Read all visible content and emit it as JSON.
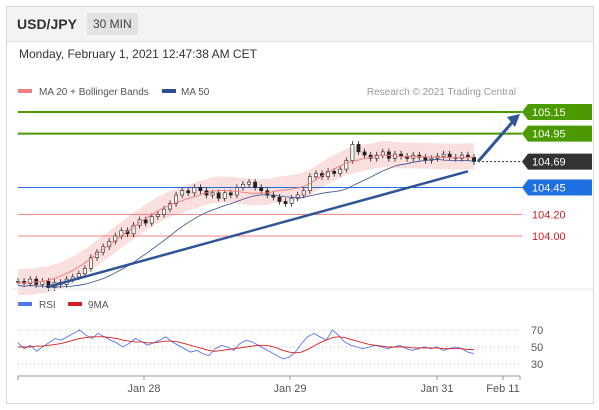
{
  "header": {
    "symbol": "USD/JPY",
    "timeframe": "30 MIN"
  },
  "timestamp": "Monday, February 1, 2021 12:47:38 AM CET",
  "legend": {
    "ma20": "MA 20 + Bollinger Bands",
    "ma50": "MA 50",
    "credit": "Research © 2021 Trading Central"
  },
  "rsi_legend": {
    "rsi": "RSI",
    "ma9": "9MA"
  },
  "colors": {
    "green": "#4a9a00",
    "blue": "#1e6fe0",
    "red": "#d22020",
    "dark": "#333333",
    "trend": "#2f5597",
    "band": "#f4b8b8"
  },
  "chart_data": [
    {
      "type": "candlestick",
      "title": "USD/JPY",
      "x_ticks": [
        "Jan 28",
        "Jan 29",
        "Jan 31",
        "Feb 11"
      ],
      "levels": [
        {
          "value": 105.15,
          "label": "105.15",
          "kind": "resistance"
        },
        {
          "value": 104.95,
          "label": "104.95",
          "kind": "resistance"
        },
        {
          "value": 104.69,
          "label": "104.69",
          "kind": "last"
        },
        {
          "value": 104.45,
          "label": "104.45",
          "kind": "support"
        },
        {
          "value": 104.2,
          "label": "104.20",
          "kind": "support"
        },
        {
          "value": 104.0,
          "label": "104.00",
          "kind": "support"
        }
      ],
      "ylim": [
        103.55,
        105.25
      ],
      "close_path": [
        103.58,
        103.56,
        103.6,
        103.55,
        103.58,
        103.52,
        103.57,
        103.55,
        103.6,
        103.62,
        103.65,
        103.7,
        103.8,
        103.85,
        103.9,
        103.95,
        104.0,
        104.05,
        104.02,
        104.1,
        104.15,
        104.12,
        104.18,
        104.2,
        104.25,
        104.3,
        104.38,
        104.42,
        104.4,
        104.45,
        104.42,
        104.38,
        104.4,
        104.35,
        104.4,
        104.38,
        104.45,
        104.48,
        104.5,
        104.45,
        104.42,
        104.38,
        104.36,
        104.32,
        104.3,
        104.35,
        104.38,
        104.42,
        104.55,
        104.58,
        104.55,
        104.6,
        104.58,
        104.62,
        104.7,
        104.85,
        104.78,
        104.75,
        104.72,
        104.75,
        104.78,
        104.72,
        104.76,
        104.74,
        104.72,
        104.75,
        104.73,
        104.7,
        104.72,
        104.74,
        104.76,
        104.73,
        104.72,
        104.75,
        104.73,
        104.69
      ],
      "trendline": {
        "from": {
          "index": 5,
          "value": 103.53
        },
        "to": {
          "index": 74,
          "value": 104.6
        }
      },
      "projection": {
        "from": 104.69,
        "to": 105.15
      }
    },
    {
      "type": "line",
      "title": "RSI",
      "y_ticks": [
        70,
        50,
        30
      ],
      "ylim": [
        20,
        80
      ],
      "series": [
        {
          "name": "RSI",
          "color": "#5577ee",
          "values": [
            55,
            48,
            52,
            45,
            50,
            55,
            60,
            58,
            62,
            66,
            70,
            64,
            60,
            66,
            62,
            58,
            55,
            50,
            54,
            60,
            57,
            52,
            55,
            58,
            62,
            56,
            52,
            48,
            44,
            46,
            42,
            40,
            48,
            52,
            50,
            46,
            54,
            58,
            56,
            52,
            48,
            44,
            40,
            36,
            38,
            44,
            54,
            62,
            66,
            62,
            58,
            70,
            64,
            56,
            52,
            50,
            48,
            50,
            52,
            50,
            48,
            50,
            52,
            48,
            46,
            48,
            50,
            48,
            50,
            46,
            48,
            50,
            48,
            44,
            42
          ]
        },
        {
          "name": "9MA",
          "color": "#d22020",
          "values": [
            50,
            50,
            50,
            51,
            51,
            52,
            53,
            54,
            56,
            58,
            60,
            61,
            62,
            62,
            62,
            61,
            60,
            58,
            57,
            56,
            56,
            55,
            55,
            56,
            57,
            57,
            56,
            54,
            52,
            50,
            48,
            46,
            45,
            46,
            47,
            48,
            49,
            50,
            51,
            52,
            52,
            51,
            49,
            46,
            44,
            43,
            44,
            47,
            51,
            55,
            58,
            61,
            62,
            61,
            59,
            57,
            55,
            53,
            52,
            51,
            50,
            50,
            50,
            50,
            49,
            49,
            49,
            49,
            49,
            48,
            48,
            48,
            48,
            47,
            47
          ]
        }
      ]
    }
  ]
}
